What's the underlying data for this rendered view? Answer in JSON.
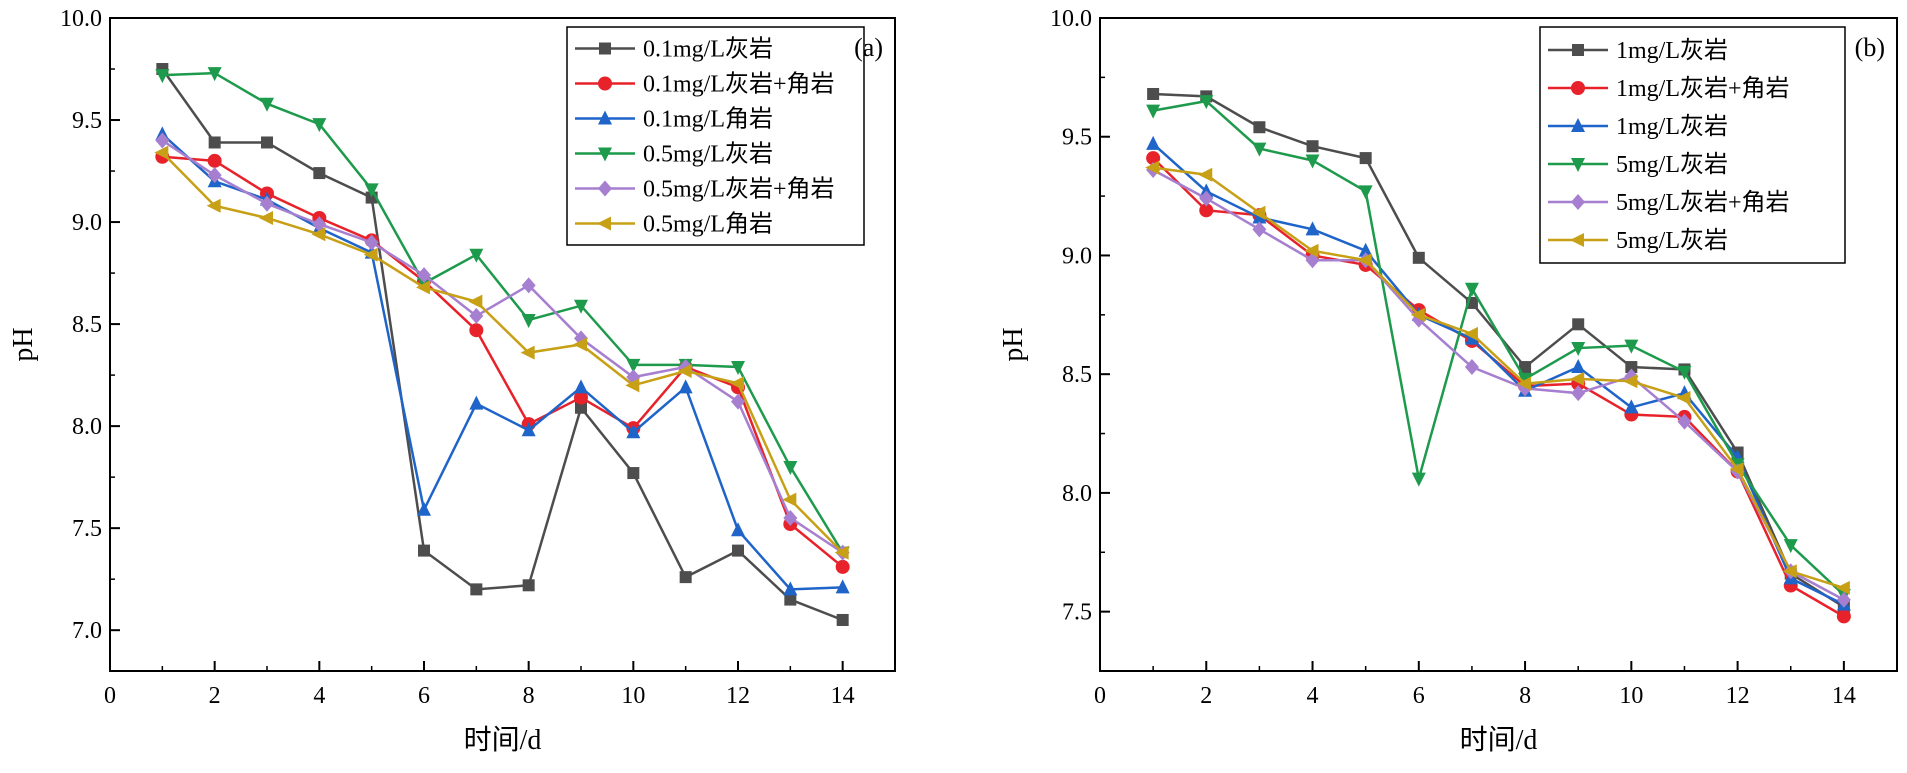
{
  "chart_data": [
    {
      "type": "line",
      "panel_label": "(a)",
      "xlabel": "时间/d",
      "ylabel": "pH",
      "xlim": [
        0,
        15
      ],
      "ylim": [
        6.8,
        10.0
      ],
      "xticks": [
        0,
        2,
        4,
        6,
        8,
        10,
        12,
        14
      ],
      "yticks": [
        7.0,
        7.5,
        8.0,
        8.5,
        9.0,
        9.5,
        10.0
      ],
      "tick_labels_y": [
        "7.0",
        "7.5",
        "8.0",
        "8.5",
        "9.0",
        "9.5",
        "10.0"
      ],
      "x": [
        1,
        2,
        3,
        4,
        5,
        6,
        7,
        8,
        9,
        10,
        11,
        12,
        13,
        14
      ],
      "legend_position": "top-right",
      "series": [
        {
          "name": "0.1mg/L灰岩",
          "color": "#4d4d4d",
          "marker": "square",
          "values": [
            9.75,
            9.39,
            9.39,
            9.24,
            9.12,
            7.39,
            7.2,
            7.22,
            8.09,
            7.77,
            7.26,
            7.39,
            7.15,
            7.05
          ]
        },
        {
          "name": "0.1mg/L灰岩+角岩",
          "color": "#e8222a",
          "marker": "circle",
          "values": [
            9.32,
            9.3,
            9.14,
            9.02,
            8.91,
            8.71,
            8.47,
            8.01,
            8.14,
            7.99,
            8.29,
            8.19,
            7.52,
            7.31
          ]
        },
        {
          "name": "0.1mg/L角岩",
          "color": "#1f64c8",
          "marker": "triangle-up",
          "values": [
            9.43,
            9.2,
            9.11,
            8.97,
            8.85,
            7.59,
            8.11,
            7.98,
            8.19,
            7.97,
            8.19,
            7.49,
            7.2,
            7.21
          ]
        },
        {
          "name": "0.5mg/L灰岩",
          "color": "#1e9a4c",
          "marker": "triangle-down",
          "values": [
            9.72,
            9.73,
            9.58,
            9.48,
            9.16,
            8.7,
            8.84,
            8.52,
            8.59,
            8.3,
            8.3,
            8.29,
            7.8,
            7.38
          ]
        },
        {
          "name": "0.5mg/L灰岩+角岩",
          "color": "#a67fd0",
          "marker": "diamond",
          "values": [
            9.4,
            9.23,
            9.09,
            8.99,
            8.9,
            8.74,
            8.54,
            8.69,
            8.43,
            8.24,
            8.29,
            8.12,
            7.55,
            7.38
          ]
        },
        {
          "name": "0.5mg/L角岩",
          "color": "#c7a016",
          "marker": "triangle-left",
          "values": [
            9.34,
            9.08,
            9.02,
            8.94,
            8.84,
            8.68,
            8.61,
            8.36,
            8.4,
            8.2,
            8.27,
            8.21,
            7.64,
            7.38
          ]
        }
      ]
    },
    {
      "type": "line",
      "panel_label": "(b)",
      "xlabel": "时间/d",
      "ylabel": "pH",
      "xlim": [
        0,
        15
      ],
      "ylim": [
        7.25,
        10.0
      ],
      "xticks": [
        0,
        2,
        4,
        6,
        8,
        10,
        12,
        14
      ],
      "yticks": [
        7.5,
        8.0,
        8.5,
        9.0,
        9.5,
        10.0
      ],
      "tick_labels_y": [
        "7.5",
        "8.0",
        "8.5",
        "9.0",
        "9.5",
        "10.0"
      ],
      "x": [
        1,
        2,
        3,
        4,
        5,
        6,
        7,
        8,
        9,
        10,
        11,
        12,
        13,
        14
      ],
      "legend_position": "top-right",
      "series": [
        {
          "name": "1mg/L灰岩",
          "color": "#4d4d4d",
          "marker": "square",
          "values": [
            9.68,
            9.67,
            9.54,
            9.46,
            9.41,
            8.99,
            8.8,
            8.53,
            8.71,
            8.53,
            8.52,
            8.17,
            7.66,
            7.52
          ]
        },
        {
          "name": "1mg/L灰岩+角岩",
          "color": "#e8222a",
          "marker": "circle",
          "values": [
            9.41,
            9.19,
            9.17,
            9.0,
            8.96,
            8.77,
            8.64,
            8.45,
            8.46,
            8.33,
            8.32,
            8.09,
            7.61,
            7.48
          ]
        },
        {
          "name": "1mg/L灰岩",
          "color": "#1f64c8",
          "marker": "triangle-up",
          "values": [
            9.47,
            9.27,
            9.16,
            9.11,
            9.02,
            8.75,
            8.65,
            8.43,
            8.53,
            8.36,
            8.42,
            8.15,
            7.64,
            7.53
          ]
        },
        {
          "name": "5mg/L灰岩",
          "color": "#1e9a4c",
          "marker": "triangle-down",
          "values": [
            9.61,
            9.65,
            9.45,
            9.4,
            9.27,
            8.06,
            8.86,
            8.48,
            8.61,
            8.62,
            8.51,
            8.12,
            7.78,
            7.57
          ]
        },
        {
          "name": "5mg/L灰岩+角岩",
          "color": "#a67fd0",
          "marker": "diamond",
          "values": [
            9.36,
            9.24,
            9.11,
            8.98,
            8.98,
            8.73,
            8.53,
            8.44,
            8.42,
            8.49,
            8.3,
            8.09,
            7.67,
            7.55
          ]
        },
        {
          "name": "5mg/L灰岩",
          "color": "#c7a016",
          "marker": "triangle-left",
          "values": [
            9.37,
            9.34,
            9.18,
            9.02,
            8.98,
            8.75,
            8.67,
            8.46,
            8.48,
            8.47,
            8.4,
            8.1,
            7.67,
            7.6
          ]
        }
      ]
    }
  ]
}
